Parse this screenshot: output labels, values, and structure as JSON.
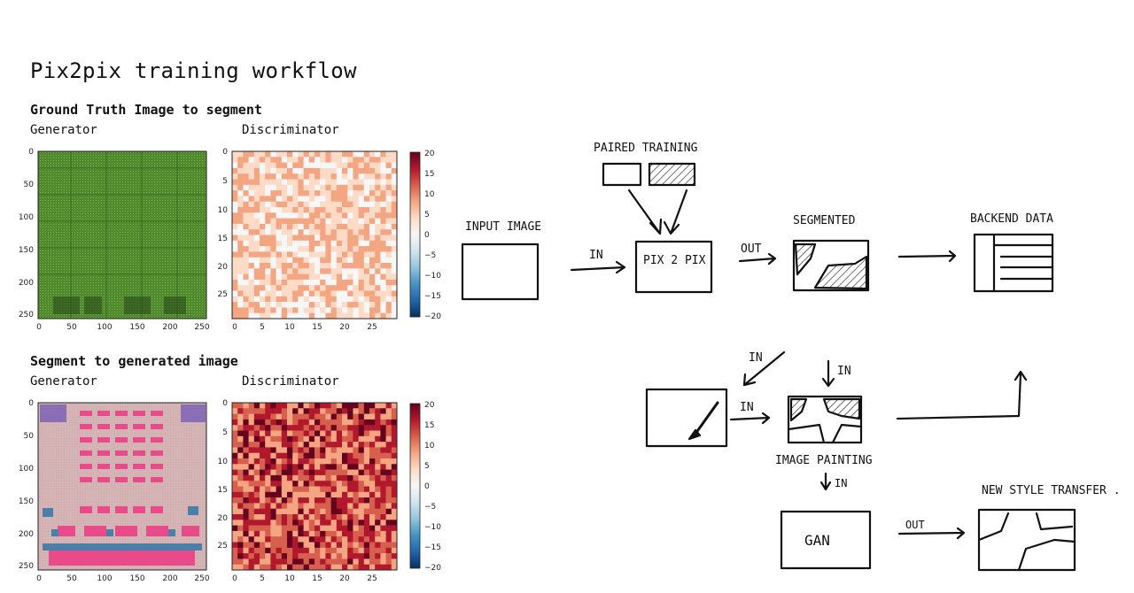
{
  "title": "Pix2pix training workflow",
  "sections": [
    {
      "heading": "Ground Truth Image to segment",
      "generator_label": "Generator",
      "discriminator_label": "Discriminator"
    },
    {
      "heading": "Segment to generated image",
      "generator_label": "Generator",
      "discriminator_label": "Discriminator"
    }
  ],
  "plots": {
    "generator_x_ticks": [
      "0",
      "50",
      "100",
      "150",
      "200",
      "250"
    ],
    "generator_y_ticks": [
      "0",
      "50",
      "100",
      "150",
      "200",
      "250"
    ],
    "discriminator_x_ticks": [
      "0",
      "5",
      "10",
      "15",
      "20",
      "25"
    ],
    "discriminator_y_ticks": [
      "0",
      "5",
      "10",
      "15",
      "20",
      "25"
    ],
    "colorbar_ticks": [
      "20",
      "15",
      "10",
      "5",
      "0",
      "−5",
      "−10",
      "−15",
      "−20"
    ],
    "colorbar_range": [
      -20,
      20
    ],
    "colormap": [
      "#67001f",
      "#b2182b",
      "#d6604d",
      "#f4a582",
      "#fddbc7",
      "#f7f7f7",
      "#d1e5f0",
      "#92c5de",
      "#4393c3",
      "#2166ac",
      "#053061"
    ]
  },
  "sketch": {
    "paired_training": "PAIRED TRAINING",
    "input_image": "INPUT IMAGE",
    "in_label": "IN",
    "pix2pix": "PIX 2 PIX",
    "out_label": "OUT",
    "segmented": "SEGMENTED",
    "backend_data": "BACKEND DATA",
    "image_painting": "IMAGE PAINTING",
    "gan": "GAN",
    "new_style_transfer": "NEW STYLE TRANSFER ."
  },
  "colors": {
    "generator_green": "#4f8a2c",
    "generator_pink": "#e8a3a8",
    "ink": "#111111"
  }
}
